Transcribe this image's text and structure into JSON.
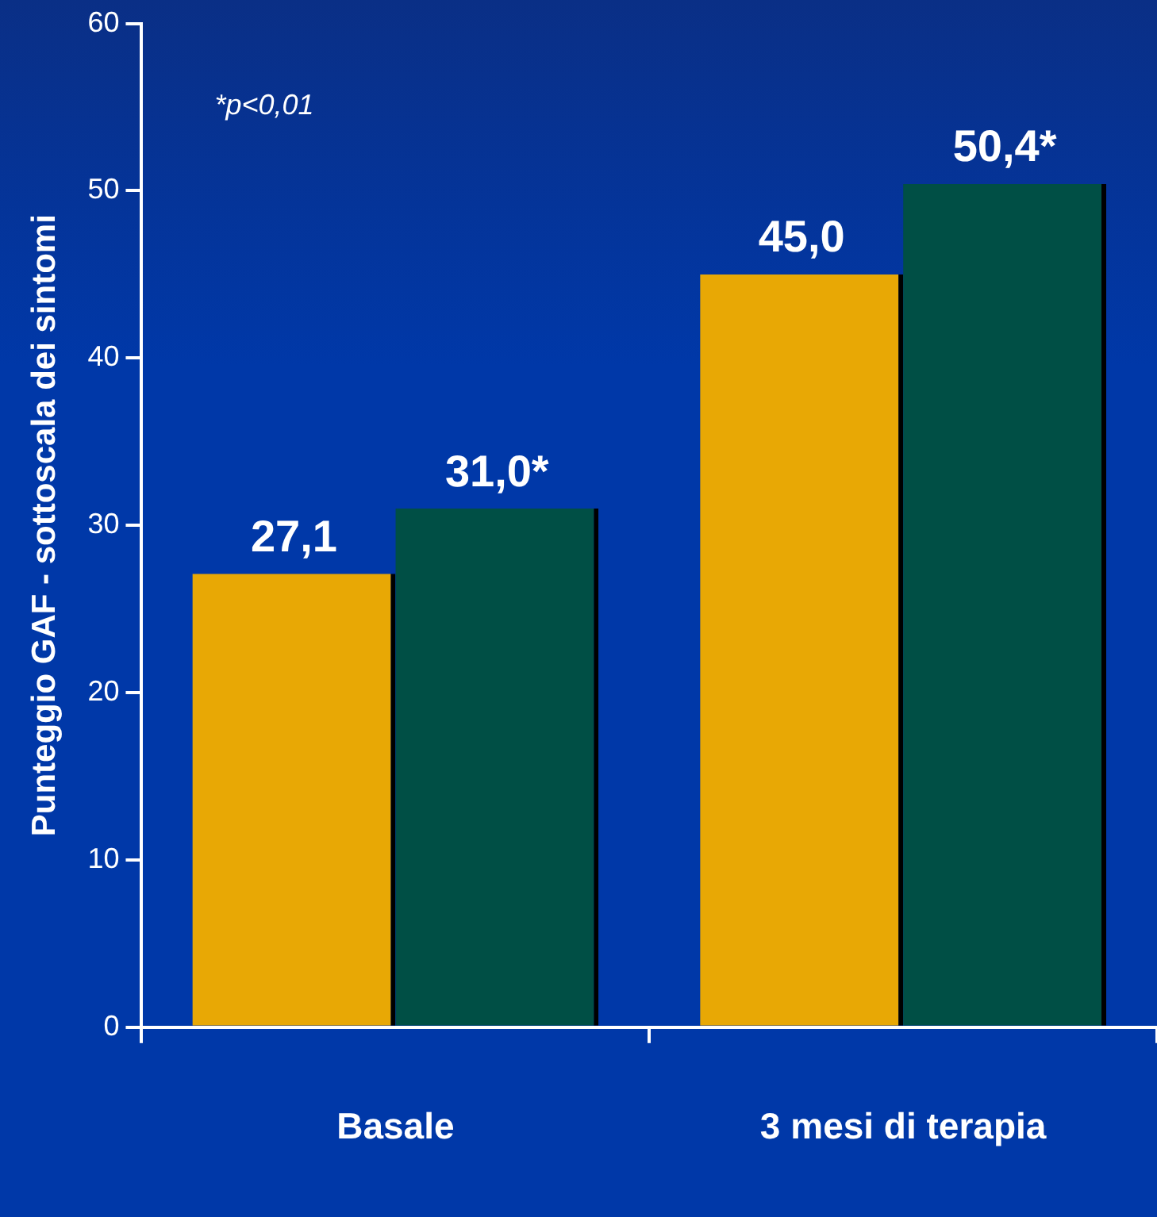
{
  "chart_data": {
    "type": "bar",
    "ylabel": "Punteggio GAF - sottoscala dei sintomi",
    "categories": [
      "Basale",
      "3 mesi di terapia"
    ],
    "series": [
      {
        "color": "#e8a805",
        "values": [
          27.1,
          45.0
        ],
        "value_labels": [
          "27,1",
          "45,0"
        ]
      },
      {
        "color": "#004f45",
        "values": [
          31.0,
          50.4
        ],
        "value_labels": [
          "31,0*",
          "50,4*"
        ]
      }
    ],
    "ylim": [
      0,
      60
    ],
    "yticks": [
      0,
      10,
      20,
      30,
      40,
      50,
      60
    ],
    "grid": false,
    "legend": false,
    "annotations": [
      "*p<0,01"
    ]
  }
}
